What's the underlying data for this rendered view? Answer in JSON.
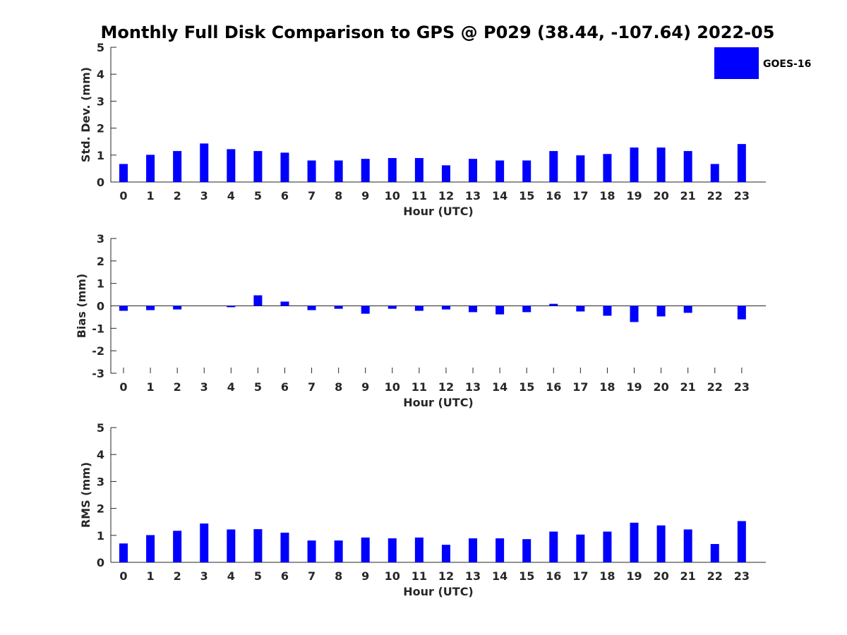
{
  "title": "Monthly Full Disk Comparison to GPS @ P029 (38.44, -107.64) 2022-05",
  "legend": {
    "label": "GOES-16",
    "color": "#0000ff",
    "placement": "top-right"
  },
  "chart_data": [
    {
      "type": "bar",
      "ylabel": "Std. Dev. (mm)",
      "xlabel": "Hour (UTC)",
      "ylim": [
        0,
        5
      ],
      "yticks": [
        0,
        1,
        2,
        3,
        4,
        5
      ],
      "categories": [
        "0",
        "1",
        "2",
        "3",
        "4",
        "5",
        "6",
        "7",
        "8",
        "9",
        "10",
        "11",
        "12",
        "13",
        "14",
        "15",
        "16",
        "17",
        "18",
        "19",
        "20",
        "21",
        "22",
        "23"
      ],
      "series": [
        {
          "name": "GOES-16",
          "color": "#0000ff",
          "values": [
            0.67,
            1.01,
            1.15,
            1.43,
            1.22,
            1.15,
            1.09,
            0.8,
            0.8,
            0.86,
            0.89,
            0.89,
            0.62,
            0.86,
            0.8,
            0.8,
            1.15,
            0.99,
            1.04,
            1.28,
            1.28,
            1.15,
            0.67,
            1.41
          ]
        }
      ]
    },
    {
      "type": "bar",
      "ylabel": "Bias (mm)",
      "xlabel": "Hour (UTC)",
      "ylim": [
        -3,
        3
      ],
      "yticks": [
        -3,
        -2,
        -1,
        0,
        1,
        2,
        3
      ],
      "categories": [
        "0",
        "1",
        "2",
        "3",
        "4",
        "5",
        "6",
        "7",
        "8",
        "9",
        "10",
        "11",
        "12",
        "13",
        "14",
        "15",
        "16",
        "17",
        "18",
        "19",
        "20",
        "21",
        "22",
        "23"
      ],
      "series": [
        {
          "name": "GOES-16",
          "color": "#0000ff",
          "values": [
            -0.22,
            -0.19,
            -0.16,
            0.0,
            -0.06,
            0.47,
            0.19,
            -0.19,
            -0.13,
            -0.35,
            -0.13,
            -0.22,
            -0.16,
            -0.28,
            -0.38,
            -0.28,
            0.09,
            -0.25,
            -0.44,
            -0.72,
            -0.47,
            -0.31,
            0.0,
            -0.6
          ]
        }
      ]
    },
    {
      "type": "bar",
      "ylabel": "RMS (mm)",
      "xlabel": "Hour (UTC)",
      "ylim": [
        0,
        5
      ],
      "yticks": [
        0,
        1,
        2,
        3,
        4,
        5
      ],
      "categories": [
        "0",
        "1",
        "2",
        "3",
        "4",
        "5",
        "6",
        "7",
        "8",
        "9",
        "10",
        "11",
        "12",
        "13",
        "14",
        "15",
        "16",
        "17",
        "18",
        "19",
        "20",
        "21",
        "22",
        "23"
      ],
      "series": [
        {
          "name": "GOES-16",
          "color": "#0000ff",
          "values": [
            0.7,
            1.01,
            1.17,
            1.44,
            1.22,
            1.23,
            1.1,
            0.81,
            0.81,
            0.92,
            0.89,
            0.92,
            0.65,
            0.89,
            0.89,
            0.86,
            1.14,
            1.03,
            1.14,
            1.47,
            1.37,
            1.22,
            0.68,
            1.53
          ]
        }
      ]
    }
  ]
}
